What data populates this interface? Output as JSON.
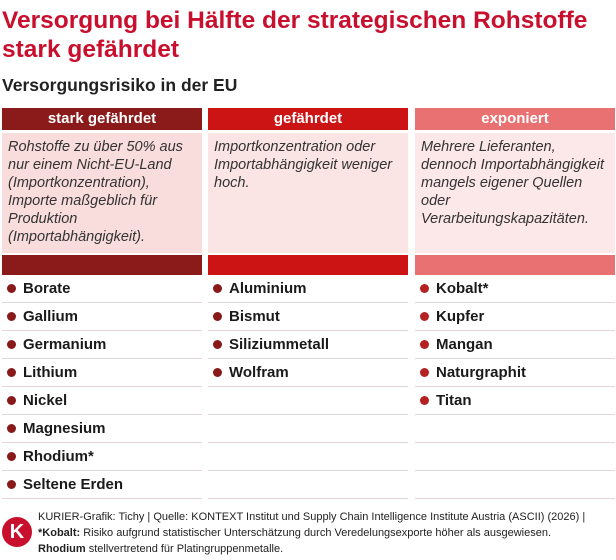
{
  "title": "Versorgung bei Hälfte der strategischen Rohstoffe stark gefährdet",
  "subtitle": "Versorgungsrisiko in der EU",
  "chart_data": {
    "type": "table",
    "columns": [
      {
        "header": "stark gefährdet",
        "description": "Rohstoffe zu über 50% aus nur einem Nicht-EU-Land (Importkonzentration), Importe maßgeblich für Produktion (Importabhängigkeit).",
        "color": "#8b1a1a",
        "bg": "#f9dcdc",
        "items": [
          "Borate",
          "Gallium",
          "Germanium",
          "Lithium",
          "Nickel",
          "Magnesium",
          "Rhodium*",
          "Seltene Erden"
        ]
      },
      {
        "header": "gefährdet",
        "description": "Importkonzentration oder Importabhängigkeit weniger hoch.",
        "color": "#cc1414",
        "bg": "#fbe4e4",
        "items": [
          "Aluminium",
          "Bismut",
          "Siliziummetall",
          "Wolfram"
        ]
      },
      {
        "header": "exponiert",
        "description": "Mehrere Lieferanten, dennoch Importabhängigkeit mangels eigener Quellen oder Verarbeitungskapazitäten.",
        "color": "#ea7171",
        "bg": "#fce8e8",
        "items": [
          "Kobalt*",
          "Kupfer",
          "Mangan",
          "Naturgraphit",
          "Titan"
        ]
      }
    ]
  },
  "footer": {
    "logo": "K",
    "source_line": "KURIER-Grafik: Tichy  | Quelle: KONTEXT Institut und Supply Chain Intelligence Institute Austria (ASCII) (2026) |",
    "note1_bold": "*Kobalt:",
    "note1_text": " Risiko aufgrund statistischer Unterschätzung durch Veredelungsexporte höher als ausgewiesen.",
    "note2_bold": "Rhodium",
    "note2_text": " stellvertretend für Platingruppenmetalle."
  }
}
